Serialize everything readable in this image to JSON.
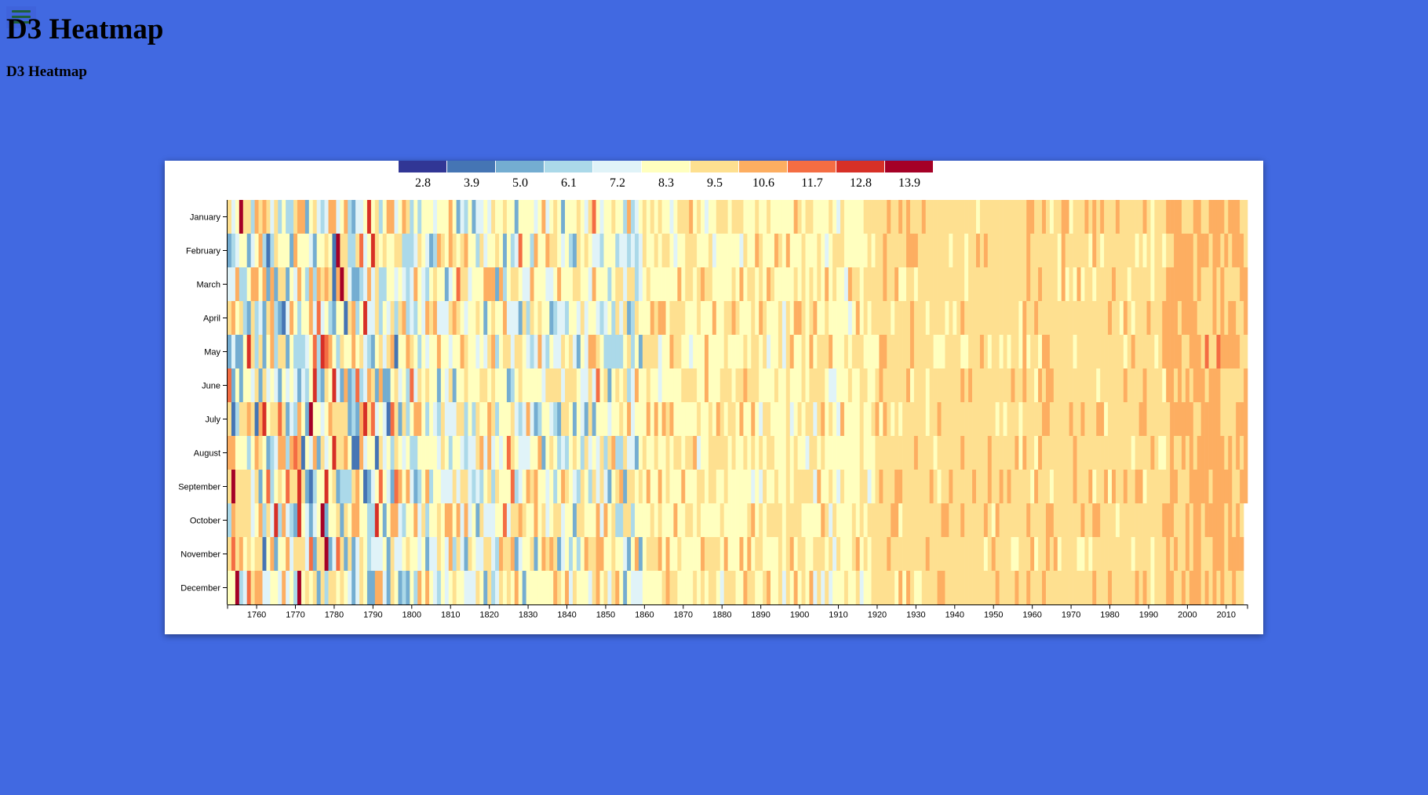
{
  "header": {
    "title": "D3 Heatmap",
    "subtitle": "D3 Heatmap",
    "menu_icon": "hamburger-icon"
  },
  "chart_data": {
    "type": "heatmap",
    "title": "",
    "xlabel": "",
    "ylabel": "",
    "x_range": [
      1753,
      2015
    ],
    "x_ticks": [
      1760,
      1770,
      1780,
      1790,
      1800,
      1810,
      1820,
      1830,
      1840,
      1850,
      1860,
      1870,
      1880,
      1890,
      1900,
      1910,
      1920,
      1930,
      1940,
      1950,
      1960,
      1970,
      1980,
      1990,
      2000,
      2010
    ],
    "months": [
      "January",
      "February",
      "March",
      "April",
      "May",
      "June",
      "July",
      "August",
      "September",
      "October",
      "November",
      "December"
    ],
    "legend": {
      "position": "top-center",
      "thresholds": [
        "2.8",
        "3.9",
        "5.0",
        "6.1",
        "7.2",
        "8.3",
        "9.5",
        "10.6",
        "11.7",
        "12.8",
        "13.9"
      ],
      "colors": [
        "#313695",
        "#4575b4",
        "#74add1",
        "#abd9e9",
        "#e0f3f8",
        "#ffffbf",
        "#fee090",
        "#fdae61",
        "#f46d43",
        "#d73027",
        "#a50026"
      ]
    },
    "color_note": "Each cell is one month of one year, coloured by the legend bin",
    "cells_summary": {
      "1753-1800": "mixed blue and yellow with occasional red, higher variance",
      "1800-1860": "mostly pale yellow and light blue",
      "1860-1920": "pale yellow with scattered light orange",
      "1920-2015": "predominantly light orange, deeper orange after 1995"
    }
  }
}
